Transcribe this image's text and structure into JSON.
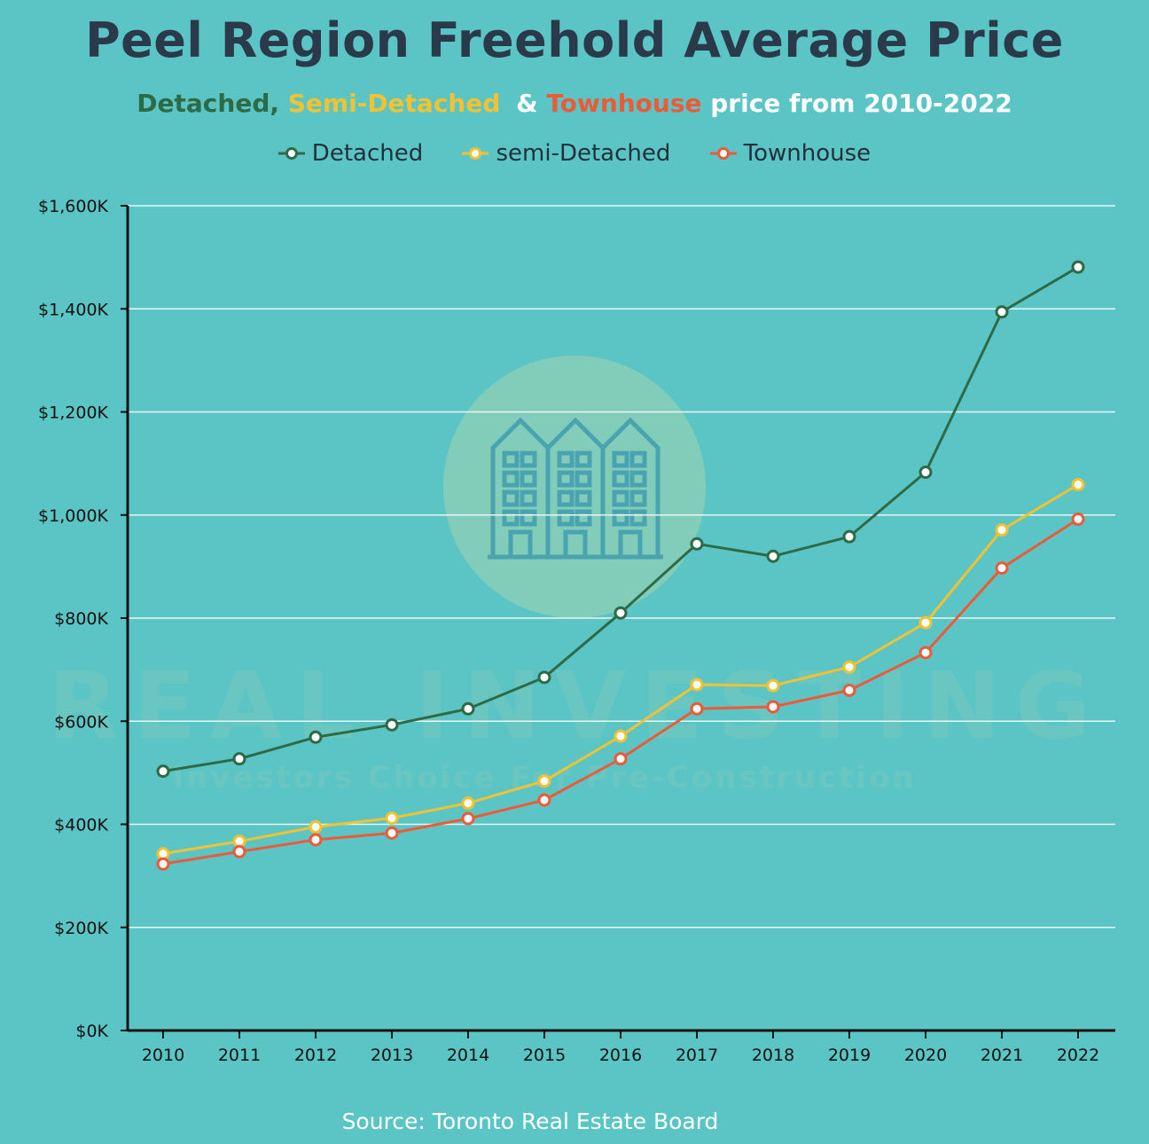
{
  "title": "Peel Region Freehold Average Price",
  "subtitle": {
    "part1": "Detached,",
    "part2": "Semi-Detached",
    "part3": "&",
    "part4": "Townhouse",
    "part5": "price from 2010-2022"
  },
  "source": "Source: Toronto Real Estate Board",
  "watermark": {
    "main": "REAL INVESTING",
    "tagline": "Investors Choice For Pre-Construction",
    "icon": "townhouse-building-icon"
  },
  "colors": {
    "background": "#5bc5c5",
    "title": "#2b3a4a",
    "detached": "#2e6a45",
    "semi": "#f2c233",
    "townhouse": "#ec5a37",
    "grid": "#e7f6f6",
    "axis": "#111111"
  },
  "chart_data": {
    "type": "line",
    "x": [
      "2010",
      "2011",
      "2012",
      "2013",
      "2014",
      "2015",
      "2016",
      "2017",
      "2018",
      "2019",
      "2020",
      "2021",
      "2022"
    ],
    "series": [
      {
        "name": "Detached",
        "values": [
          503,
          527,
          569,
          593,
          624,
          685,
          810,
          944,
          920,
          958,
          1083,
          1394,
          1481
        ]
      },
      {
        "name": "semi-Detached",
        "values": [
          343,
          367,
          395,
          412,
          441,
          484,
          571,
          671,
          669,
          705,
          791,
          971,
          1059
        ]
      },
      {
        "name": "Townhouse",
        "values": [
          323,
          347,
          370,
          383,
          411,
          447,
          527,
          624,
          628,
          660,
          733,
          897,
          992
        ]
      }
    ],
    "ylim": [
      0,
      1600
    ],
    "yticks": [
      "$0K",
      "$200K",
      "$400K",
      "$600K",
      "$800K",
      "$1,000K",
      "$1,200K",
      "$1,400K",
      "$1,600K"
    ],
    "grid": true,
    "legend_position": "top-center"
  }
}
